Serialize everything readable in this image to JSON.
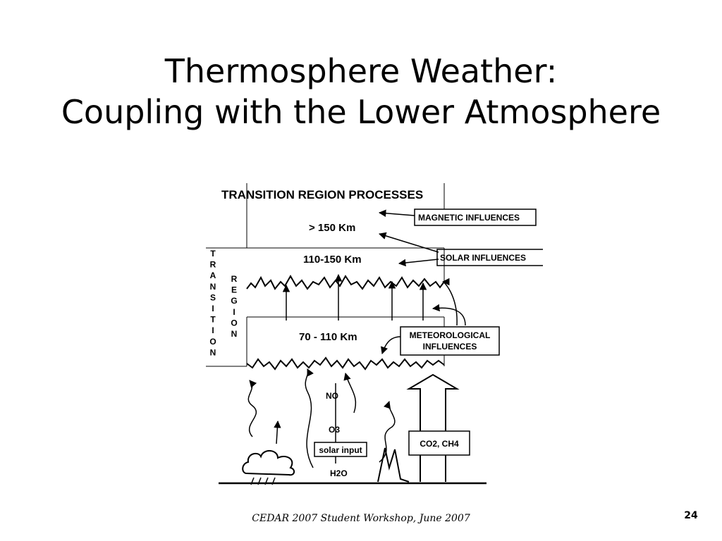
{
  "slide": {
    "title_line1": "Thermosphere Weather:",
    "title_line2": "Coupling with the Lower Atmosphere",
    "footer": "CEDAR 2007 Student Workshop, June 2007",
    "page_number": "24"
  },
  "diagram": {
    "heading": "TRANSITION REGION PROCESSES",
    "regions": {
      "top": "> 150 Km",
      "middle": "110-150 Km",
      "lower": "70 - 110 Km"
    },
    "side_left_letters": [
      "T",
      "R",
      "A",
      "N",
      "S",
      "I",
      "T",
      "I",
      "O",
      "N"
    ],
    "side_right_letters": [
      "R",
      "E",
      "G",
      "I",
      "O",
      "N"
    ],
    "boxes": {
      "magnetic": "MAGNETIC INFLUENCES",
      "solar": "SOLAR INFLUENCES",
      "meteorological_line1": "METEOROLOGICAL",
      "meteorological_line2": "INFLUENCES",
      "co2": "CO2, CH4",
      "solar_input": "solar input"
    },
    "species": {
      "no": "NO",
      "o3": "O3",
      "h2o": "H2O"
    }
  }
}
